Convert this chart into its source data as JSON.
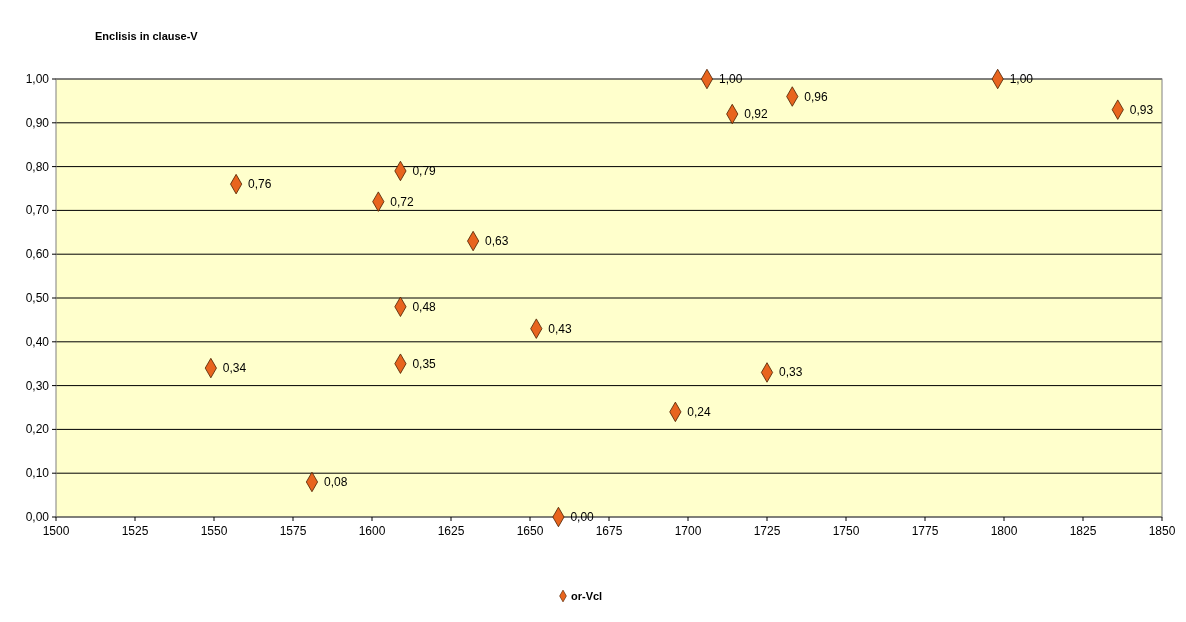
{
  "chart_data": {
    "type": "scatter",
    "title": "Enclisis in clause-V",
    "x": [
      1549,
      1557,
      1581,
      1602,
      1609,
      1609,
      1609,
      1632,
      1652,
      1659,
      1696,
      1706,
      1714,
      1725,
      1733,
      1798,
      1836
    ],
    "series": [
      {
        "name": "or-Vcl",
        "color": "#e8641e",
        "values": [
          0.34,
          0.76,
          0.08,
          0.72,
          0.79,
          0.48,
          0.35,
          0.63,
          0.43,
          0.0,
          0.24,
          1.0,
          0.92,
          0.33,
          0.96,
          1.0,
          0.93
        ],
        "value_labels": [
          "0,34",
          "0,76",
          "0,08",
          "0,72",
          "0,79",
          "0,48",
          "0,35",
          "0,63",
          "0,43",
          "0,00",
          "0,24",
          "1,00",
          "0,92",
          "0,33",
          "0,96",
          "1,00",
          "0,93"
        ]
      }
    ],
    "xlim": [
      1500,
      1850
    ],
    "xticks": [
      1500,
      1525,
      1550,
      1575,
      1600,
      1625,
      1650,
      1675,
      1700,
      1725,
      1750,
      1775,
      1800,
      1825,
      1850
    ],
    "ylim": [
      0,
      1
    ],
    "yticks": [
      {
        "value": 0,
        "label": "0,00"
      },
      {
        "value": 0.1,
        "label": "0,10"
      },
      {
        "value": 0.2,
        "label": "0,20"
      },
      {
        "value": 0.3,
        "label": "0,30"
      },
      {
        "value": 0.4,
        "label": "0,40"
      },
      {
        "value": 0.5,
        "label": "0,50"
      },
      {
        "value": 0.6,
        "label": "0,60"
      },
      {
        "value": 0.7,
        "label": "0,70"
      },
      {
        "value": 0.8,
        "label": "0,80"
      },
      {
        "value": 0.9,
        "label": "0,90"
      },
      {
        "value": 1,
        "label": "1,00"
      }
    ],
    "grid": "y",
    "legend": "bottom",
    "marker": "diamond"
  }
}
